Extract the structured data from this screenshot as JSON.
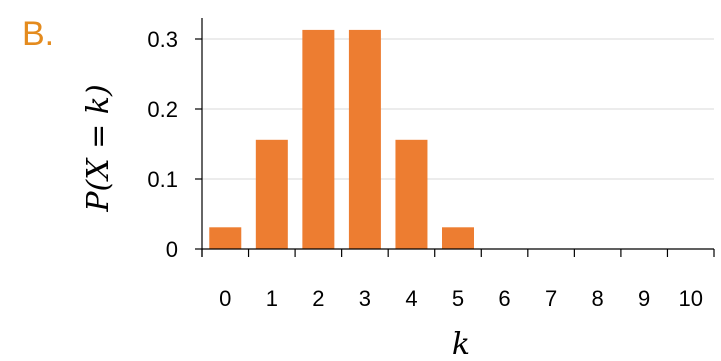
{
  "panel_label": "B.",
  "colors": {
    "bar": "#ED7D31",
    "panel_label": "#E48B1E",
    "gridline": "#D9D9D9",
    "axis": "#000000"
  },
  "chart_data": {
    "type": "bar",
    "categories": [
      "0",
      "1",
      "2",
      "3",
      "4",
      "5",
      "6",
      "7",
      "8",
      "9",
      "10"
    ],
    "values": [
      0.031,
      0.156,
      0.313,
      0.313,
      0.156,
      0.031,
      0,
      0,
      0,
      0,
      0
    ],
    "xlabel": "k",
    "ylabel": "P(X = k)",
    "ylim": [
      0,
      0.3
    ],
    "yticks": [
      "0",
      "0.1",
      "0.2",
      "0.3"
    ],
    "ytick_values": [
      0,
      0.1,
      0.2,
      0.3
    ],
    "grid": true,
    "legend": false
  }
}
